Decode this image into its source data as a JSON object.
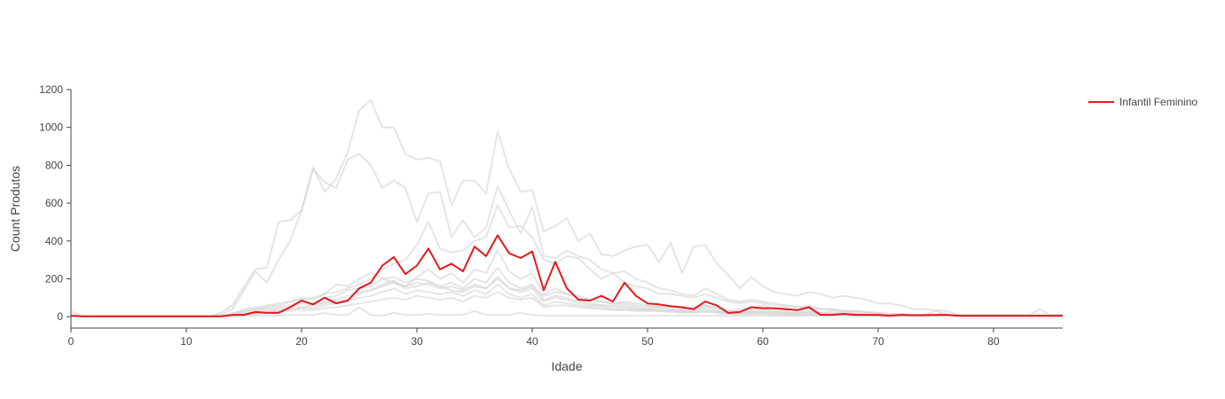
{
  "chart_data": {
    "type": "line",
    "xlabel": "Idade",
    "ylabel": "Count Produtos",
    "xlim": [
      0,
      86
    ],
    "ylim": [
      -60,
      1200
    ],
    "xticks": [
      0,
      10,
      20,
      30,
      40,
      50,
      60,
      70,
      80
    ],
    "yticks": [
      0,
      200,
      400,
      600,
      800,
      1000,
      1200
    ],
    "grid": false,
    "legend_position": "top-right",
    "colors": {
      "highlight": "#e31a1c",
      "background": "#d3d3d3"
    },
    "highlight": {
      "name": "Infantil Feminino",
      "x": [
        0,
        1,
        2,
        3,
        4,
        5,
        6,
        7,
        8,
        9,
        10,
        11,
        12,
        13,
        14,
        15,
        16,
        17,
        18,
        19,
        20,
        21,
        22,
        23,
        24,
        25,
        26,
        27,
        28,
        29,
        30,
        31,
        32,
        33,
        34,
        35,
        36,
        37,
        38,
        39,
        40,
        41,
        42,
        43,
        44,
        45,
        46,
        47,
        48,
        49,
        50,
        51,
        52,
        53,
        54,
        55,
        56,
        57,
        58,
        59,
        60,
        61,
        62,
        63,
        64,
        65,
        66,
        67,
        68,
        69,
        70,
        71,
        72,
        73,
        74,
        75,
        76,
        77,
        78,
        79,
        80,
        81,
        82,
        83,
        84,
        85,
        86
      ],
      "y": [
        5,
        2,
        2,
        2,
        2,
        2,
        2,
        2,
        2,
        2,
        2,
        2,
        2,
        2,
        10,
        10,
        25,
        20,
        20,
        50,
        85,
        65,
        100,
        70,
        85,
        150,
        180,
        270,
        315,
        225,
        270,
        360,
        250,
        280,
        240,
        370,
        320,
        430,
        335,
        310,
        345,
        140,
        290,
        150,
        90,
        85,
        110,
        80,
        180,
        110,
        70,
        65,
        55,
        50,
        40,
        80,
        60,
        20,
        25,
        50,
        45,
        45,
        40,
        35,
        50,
        10,
        10,
        15,
        10,
        10,
        10,
        5,
        10,
        8,
        8,
        10,
        10,
        5,
        5,
        5,
        5,
        5,
        5,
        5,
        5,
        5,
        5
      ]
    },
    "background_series": [
      {
        "y": [
          30,
          2,
          2,
          2,
          2,
          2,
          2,
          2,
          2,
          2,
          2,
          2,
          2,
          20,
          60,
          160,
          250,
          260,
          500,
          510,
          560,
          790,
          660,
          730,
          870,
          1090,
          1145,
          1000,
          1000,
          860,
          830,
          840,
          820,
          590,
          720,
          720,
          650,
          980,
          780,
          660,
          670,
          450,
          480,
          520,
          400,
          440,
          330,
          320,
          350,
          370,
          380,
          290,
          390,
          230,
          370,
          380,
          280,
          220,
          150,
          210,
          160,
          130,
          120,
          110,
          130,
          120,
          100,
          110,
          100,
          90,
          70,
          70,
          60,
          40,
          40,
          35,
          30,
          10,
          10,
          10,
          10,
          10,
          10,
          10,
          10,
          10,
          10
        ]
      },
      {
        "y": [
          10,
          2,
          2,
          2,
          2,
          2,
          2,
          2,
          2,
          2,
          2,
          2,
          2,
          10,
          40,
          140,
          240,
          180,
          300,
          400,
          560,
          780,
          710,
          680,
          830,
          860,
          800,
          680,
          720,
          680,
          500,
          650,
          660,
          420,
          510,
          420,
          470,
          690,
          560,
          440,
          580,
          320,
          310,
          350,
          320,
          300,
          250,
          230,
          240,
          200,
          180,
          150,
          140,
          120,
          110,
          150,
          120,
          90,
          80,
          90,
          80,
          70,
          60,
          50,
          50,
          40,
          40,
          30,
          30,
          25,
          20,
          15,
          15,
          10,
          10,
          10,
          10,
          5,
          5,
          5,
          5,
          5,
          5,
          5,
          5,
          5,
          5
        ]
      },
      {
        "y": [
          5,
          2,
          2,
          2,
          2,
          2,
          2,
          2,
          2,
          2,
          2,
          2,
          2,
          2,
          20,
          30,
          40,
          50,
          60,
          80,
          100,
          90,
          120,
          130,
          150,
          170,
          200,
          250,
          280,
          300,
          380,
          500,
          360,
          340,
          350,
          400,
          420,
          590,
          470,
          480,
          420,
          300,
          280,
          320,
          310,
          250,
          200,
          230,
          180,
          160,
          150,
          120,
          120,
          110,
          100,
          120,
          100,
          80,
          70,
          80,
          70,
          60,
          60,
          50,
          60,
          40,
          40,
          30,
          30,
          25,
          20,
          15,
          15,
          10,
          10,
          10,
          10,
          5,
          5,
          5,
          5,
          5,
          5,
          5,
          5,
          5,
          5
        ]
      },
      {
        "y": [
          5,
          2,
          2,
          2,
          2,
          2,
          2,
          2,
          2,
          2,
          2,
          2,
          2,
          2,
          10,
          40,
          50,
          60,
          70,
          80,
          90,
          100,
          120,
          170,
          160,
          200,
          230,
          200,
          180,
          160,
          210,
          250,
          200,
          230,
          180,
          250,
          230,
          350,
          240,
          200,
          230,
          120,
          150,
          120,
          110,
          90,
          80,
          70,
          70,
          60,
          50,
          60,
          50,
          40,
          40,
          60,
          50,
          30,
          30,
          40,
          40,
          30,
          30,
          20,
          30,
          20,
          20,
          20,
          15,
          10,
          10,
          10,
          10,
          5,
          5,
          5,
          5,
          5,
          5,
          5,
          5,
          5,
          5,
          5,
          5,
          5,
          5
        ]
      },
      {
        "y": [
          5,
          2,
          2,
          2,
          2,
          2,
          2,
          2,
          2,
          2,
          2,
          2,
          2,
          2,
          10,
          30,
          40,
          50,
          50,
          60,
          80,
          70,
          100,
          110,
          140,
          150,
          160,
          200,
          210,
          180,
          200,
          190,
          160,
          180,
          150,
          200,
          180,
          260,
          180,
          150,
          170,
          90,
          110,
          100,
          80,
          70,
          60,
          60,
          60,
          50,
          40,
          50,
          40,
          30,
          30,
          50,
          40,
          20,
          20,
          30,
          30,
          25,
          20,
          20,
          25,
          15,
          15,
          15,
          10,
          10,
          10,
          8,
          8,
          5,
          5,
          5,
          5,
          5,
          5,
          5,
          5,
          5,
          5,
          5,
          5,
          5,
          5
        ]
      },
      {
        "y": [
          5,
          2,
          2,
          2,
          2,
          2,
          2,
          2,
          2,
          2,
          2,
          2,
          2,
          2,
          5,
          20,
          30,
          40,
          40,
          50,
          70,
          60,
          80,
          90,
          110,
          130,
          140,
          170,
          190,
          160,
          180,
          170,
          150,
          160,
          140,
          170,
          150,
          210,
          150,
          130,
          150,
          80,
          100,
          90,
          70,
          60,
          60,
          50,
          50,
          40,
          40,
          40,
          35,
          30,
          30,
          40,
          30,
          20,
          20,
          25,
          25,
          20,
          20,
          15,
          20,
          10,
          10,
          10,
          10,
          8,
          8,
          5,
          5,
          5,
          5,
          5,
          5,
          5,
          5,
          5,
          5,
          5,
          5,
          5,
          5,
          5,
          5
        ]
      },
      {
        "y": [
          5,
          2,
          2,
          2,
          2,
          2,
          2,
          2,
          2,
          2,
          2,
          2,
          2,
          2,
          5,
          15,
          20,
          30,
          30,
          40,
          50,
          45,
          60,
          70,
          80,
          100,
          110,
          130,
          150,
          120,
          140,
          130,
          120,
          130,
          110,
          140,
          120,
          170,
          120,
          100,
          120,
          60,
          80,
          70,
          60,
          50,
          50,
          40,
          40,
          35,
          35,
          30,
          30,
          25,
          25,
          30,
          25,
          15,
          15,
          20,
          20,
          15,
          15,
          10,
          15,
          10,
          10,
          10,
          8,
          6,
          6,
          5,
          5,
          5,
          5,
          5,
          5,
          5,
          5,
          5,
          5,
          5,
          5,
          5,
          5,
          5,
          5
        ]
      },
      {
        "y": [
          5,
          2,
          2,
          2,
          2,
          2,
          2,
          2,
          2,
          2,
          2,
          2,
          2,
          2,
          2,
          5,
          5,
          5,
          5,
          10,
          10,
          10,
          20,
          10,
          10,
          50,
          10,
          5,
          20,
          10,
          10,
          15,
          10,
          10,
          10,
          30,
          10,
          10,
          10,
          20,
          10,
          5,
          5,
          5,
          5,
          5,
          5,
          5,
          5,
          5,
          5,
          5,
          5,
          5,
          5,
          5,
          5,
          5,
          5,
          5,
          5,
          5,
          5,
          5,
          5,
          5,
          5,
          5,
          5,
          5,
          5,
          5,
          5,
          5,
          5,
          5,
          5,
          5,
          5,
          5,
          5,
          5,
          5,
          5,
          40,
          5,
          5
        ]
      },
      {
        "y": [
          5,
          2,
          2,
          2,
          2,
          2,
          2,
          2,
          2,
          2,
          2,
          2,
          2,
          2,
          5,
          10,
          15,
          20,
          25,
          30,
          40,
          35,
          45,
          50,
          60,
          70,
          80,
          90,
          100,
          90,
          110,
          100,
          90,
          100,
          80,
          110,
          100,
          130,
          100,
          90,
          100,
          50,
          60,
          60,
          50,
          45,
          40,
          35,
          35,
          30,
          30,
          30,
          25,
          20,
          20,
          25,
          20,
          15,
          15,
          15,
          15,
          10,
          10,
          10,
          10,
          10,
          10,
          10,
          8,
          6,
          6,
          5,
          5,
          5,
          5,
          5,
          5,
          5,
          5,
          5,
          5,
          5,
          5,
          5,
          5,
          5,
          5
        ]
      },
      {
        "y": [
          5,
          2,
          2,
          2,
          2,
          2,
          2,
          2,
          2,
          2,
          2,
          2,
          2,
          2,
          5,
          10,
          20,
          25,
          30,
          40,
          50,
          60,
          70,
          80,
          90,
          120,
          140,
          160,
          180,
          150,
          160,
          180,
          160,
          140,
          130,
          160,
          150,
          200,
          150,
          140,
          160,
          110,
          130,
          120,
          100,
          90,
          80,
          70,
          80,
          70,
          60,
          50,
          60,
          40,
          50,
          60,
          50,
          30,
          40,
          50,
          60,
          40,
          50,
          30,
          40,
          20,
          30,
          30,
          20,
          20,
          10,
          10,
          10,
          10,
          10,
          30,
          10,
          10,
          5,
          5,
          5,
          5,
          5,
          5,
          5,
          5,
          5
        ]
      }
    ]
  }
}
